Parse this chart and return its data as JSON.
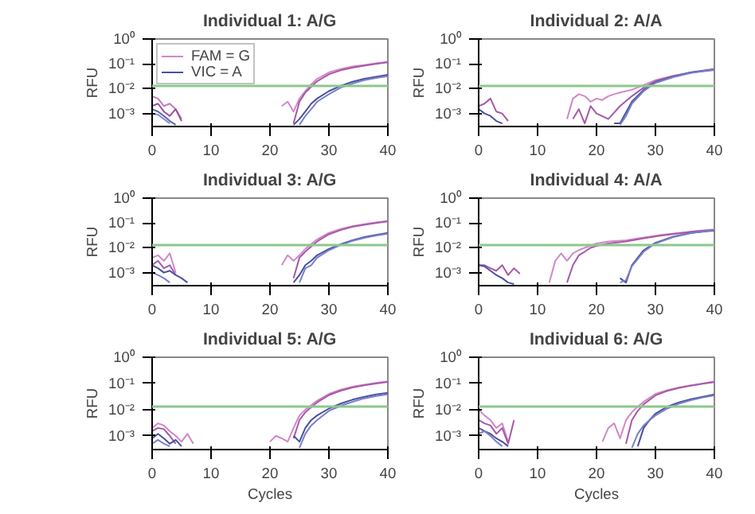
{
  "chart_data": [
    {
      "type": "line",
      "title": "Individual 1: A/G",
      "ylabel": "RFU",
      "log": "y",
      "grid": false,
      "legend": "top left",
      "xlim": [
        0,
        40
      ],
      "xticks": [
        0,
        10,
        20,
        30,
        40
      ],
      "ylim": [
        0.0003,
        1
      ],
      "yticks": [
        {
          "value": 1,
          "label": "10⁰"
        },
        {
          "value": 0.1,
          "label": "10⁻¹"
        },
        {
          "value": 0.01,
          "label": "10⁻²"
        },
        {
          "value": 0.001,
          "label": "10⁻³"
        }
      ],
      "ref_lines": [
        {
          "axis": "y",
          "value": 0.013,
          "color": "#8cc88c"
        }
      ],
      "series": [
        {
          "name": "FAM = G",
          "color": "#d088c8",
          "x": [
            22,
            23,
            24,
            25,
            26,
            27,
            28,
            30,
            32,
            34,
            36,
            38,
            40
          ],
          "values": [
            0.002,
            0.003,
            0.0012,
            0.004,
            0.008,
            0.015,
            0.025,
            0.045,
            0.062,
            0.078,
            0.09,
            0.105,
            0.12
          ]
        },
        {
          "name": "VIC = A",
          "color": "#4850a0",
          "x": [
            24,
            25,
            26,
            27,
            28,
            30,
            32,
            34,
            36,
            38,
            40
          ],
          "values": [
            0.00035,
            0.0006,
            0.0012,
            0.0025,
            0.004,
            0.008,
            0.013,
            0.019,
            0.025,
            0.03,
            0.036
          ]
        },
        {
          "color": "#a858a8",
          "x": [
            24,
            25,
            26,
            27,
            28,
            30,
            32,
            34,
            36,
            38,
            40
          ],
          "values": [
            0.0004,
            0.003,
            0.007,
            0.012,
            0.02,
            0.038,
            0.055,
            0.07,
            0.085,
            0.1,
            0.115
          ]
        },
        {
          "color": "#7880c8",
          "x": [
            25,
            26,
            27,
            28,
            30,
            32,
            34,
            36,
            38,
            40
          ],
          "values": [
            0.00035,
            0.0008,
            0.0015,
            0.003,
            0.006,
            0.011,
            0.016,
            0.022,
            0.027,
            0.032
          ]
        },
        {
          "color": "#c47cbc",
          "x": [
            0,
            1,
            2,
            3,
            4,
            5
          ],
          "values": [
            0.005,
            0.004,
            0.002,
            0.0025,
            0.0015,
            0.0006
          ]
        },
        {
          "color": "#9a4c9c",
          "x": [
            0,
            1,
            2,
            3,
            4,
            5
          ],
          "values": [
            0.002,
            0.0025,
            0.0012,
            0.0008,
            0.0015,
            0.0005
          ]
        },
        {
          "color": "#5c64b0",
          "x": [
            0,
            1,
            2,
            3,
            4
          ],
          "values": [
            0.0015,
            0.0012,
            0.0008,
            0.0005,
            0.00035
          ]
        },
        {
          "color": "#8890d0",
          "x": [
            0,
            1,
            2,
            3
          ],
          "values": [
            0.001,
            0.0009,
            0.0006,
            0.0004
          ]
        }
      ]
    },
    {
      "type": "line",
      "title": "Individual 2: A/A",
      "ylabel": "RFU",
      "log": "y",
      "grid": false,
      "xlim": [
        0,
        40
      ],
      "xticks": [
        0,
        10,
        20,
        30,
        40
      ],
      "ylim": [
        0.0003,
        1
      ],
      "yticks": [
        {
          "value": 1,
          "label": "10⁰"
        },
        {
          "value": 0.1,
          "label": "10⁻¹"
        },
        {
          "value": 0.01,
          "label": "10⁻²"
        },
        {
          "value": 0.001,
          "label": "10⁻³"
        }
      ],
      "ref_lines": [
        {
          "axis": "y",
          "value": 0.013,
          "color": "#8cc88c"
        }
      ],
      "series": [
        {
          "color": "#d088c8",
          "x": [
            15,
            16,
            17,
            18,
            19,
            20,
            21,
            22,
            23,
            24,
            26,
            28,
            30,
            33,
            36,
            40
          ],
          "values": [
            0.0006,
            0.004,
            0.006,
            0.005,
            0.003,
            0.004,
            0.0035,
            0.005,
            0.006,
            0.007,
            0.009,
            0.014,
            0.022,
            0.033,
            0.045,
            0.058
          ]
        },
        {
          "color": "#a858a8",
          "x": [
            16,
            17,
            18,
            19,
            20,
            22,
            24,
            26,
            28,
            30,
            33,
            36,
            40
          ],
          "values": [
            0.0006,
            0.0015,
            0.0004,
            0.002,
            0.001,
            0.0006,
            0.002,
            0.005,
            0.011,
            0.02,
            0.032,
            0.044,
            0.056
          ]
        },
        {
          "color": "#4850a0",
          "x": [
            23,
            24,
            26,
            28,
            30,
            33,
            36,
            40
          ],
          "values": [
            0.0004,
            0.0004,
            0.003,
            0.009,
            0.018,
            0.03,
            0.045,
            0.062
          ]
        },
        {
          "color": "#7880c8",
          "x": [
            24,
            25,
            26,
            28,
            30,
            33,
            36,
            40
          ],
          "values": [
            0.00035,
            0.0008,
            0.0025,
            0.008,
            0.017,
            0.029,
            0.043,
            0.06
          ]
        },
        {
          "color": "#a858a8",
          "x": [
            0,
            1,
            2,
            3,
            4,
            5
          ],
          "values": [
            0.002,
            0.0025,
            0.004,
            0.0012,
            0.001,
            0.0005
          ]
        },
        {
          "color": "#4850a0",
          "x": [
            0,
            1,
            2,
            3,
            4
          ],
          "values": [
            0.0015,
            0.001,
            0.0008,
            0.0005,
            0.0004
          ]
        }
      ]
    },
    {
      "type": "line",
      "title": "Individual 3: A/G",
      "ylabel": "RFU",
      "log": "y",
      "grid": false,
      "xlim": [
        0,
        40
      ],
      "xticks": [
        0,
        10,
        20,
        30,
        40
      ],
      "ylim": [
        0.0003,
        1
      ],
      "yticks": [
        {
          "value": 1,
          "label": "10⁰"
        },
        {
          "value": 0.1,
          "label": "10⁻¹"
        },
        {
          "value": 0.01,
          "label": "10⁻²"
        },
        {
          "value": 0.001,
          "label": "10⁻³"
        }
      ],
      "ref_lines": [
        {
          "axis": "y",
          "value": 0.013,
          "color": "#8cc88c"
        }
      ],
      "series": [
        {
          "color": "#d088c8",
          "x": [
            22,
            23,
            24,
            25,
            26,
            28,
            30,
            32,
            34,
            36,
            38,
            40
          ],
          "values": [
            0.002,
            0.005,
            0.003,
            0.005,
            0.009,
            0.022,
            0.04,
            0.058,
            0.075,
            0.09,
            0.105,
            0.12
          ]
        },
        {
          "color": "#a858a8",
          "x": [
            24,
            25,
            26,
            28,
            30,
            32,
            34,
            36,
            38,
            40
          ],
          "values": [
            0.0006,
            0.004,
            0.007,
            0.018,
            0.035,
            0.052,
            0.07,
            0.085,
            0.1,
            0.115
          ]
        },
        {
          "color": "#4850a0",
          "x": [
            24,
            25,
            26,
            27,
            28,
            30,
            32,
            34,
            36,
            38,
            40
          ],
          "values": [
            0.0004,
            0.0008,
            0.002,
            0.003,
            0.005,
            0.009,
            0.014,
            0.02,
            0.027,
            0.033,
            0.04
          ]
        },
        {
          "color": "#7880c8",
          "x": [
            25,
            26,
            27,
            28,
            30,
            32,
            34,
            36,
            38,
            40
          ],
          "values": [
            0.0004,
            0.0015,
            0.002,
            0.004,
            0.008,
            0.013,
            0.019,
            0.025,
            0.031,
            0.037
          ]
        },
        {
          "color": "#d088c8",
          "x": [
            0,
            1,
            2,
            3,
            4
          ],
          "values": [
            0.004,
            0.005,
            0.003,
            0.006,
            0.001
          ]
        },
        {
          "color": "#a858a8",
          "x": [
            0,
            1,
            2,
            3,
            4
          ],
          "values": [
            0.002,
            0.003,
            0.0015,
            0.002,
            0.0008
          ]
        },
        {
          "color": "#4850a0",
          "x": [
            0,
            1,
            2,
            3,
            4,
            5,
            6
          ],
          "values": [
            0.002,
            0.0015,
            0.001,
            0.0012,
            0.0008,
            0.0006,
            0.0004
          ]
        },
        {
          "color": "#7880c8",
          "x": [
            0,
            1,
            2,
            3
          ],
          "values": [
            0.001,
            0.0008,
            0.0006,
            0.0004
          ]
        }
      ]
    },
    {
      "type": "line",
      "title": "Individual 4: A/A",
      "ylabel": "RFU",
      "log": "y",
      "grid": false,
      "xlim": [
        0,
        40
      ],
      "xticks": [
        0,
        10,
        20,
        30,
        40
      ],
      "ylim": [
        0.0003,
        1
      ],
      "yticks": [
        {
          "value": 1,
          "label": "10⁰"
        },
        {
          "value": 0.1,
          "label": "10⁻¹"
        },
        {
          "value": 0.01,
          "label": "10⁻²"
        },
        {
          "value": 0.001,
          "label": "10⁻³"
        }
      ],
      "ref_lines": [
        {
          "axis": "y",
          "value": 0.013,
          "color": "#8cc88c"
        }
      ],
      "series": [
        {
          "color": "#d088c8",
          "x": [
            12,
            13,
            14,
            15,
            16,
            17,
            18,
            20,
            22,
            25,
            28,
            31,
            34,
            37,
            40
          ],
          "values": [
            0.0004,
            0.003,
            0.006,
            0.003,
            0.006,
            0.008,
            0.01,
            0.015,
            0.018,
            0.02,
            0.026,
            0.033,
            0.04,
            0.048,
            0.055
          ]
        },
        {
          "color": "#a858a8",
          "x": [
            15,
            16,
            17,
            18,
            19,
            20,
            22,
            25,
            28,
            31,
            34,
            37,
            40
          ],
          "values": [
            0.0004,
            0.002,
            0.005,
            0.007,
            0.01,
            0.012,
            0.015,
            0.018,
            0.024,
            0.031,
            0.038,
            0.046,
            0.052
          ]
        },
        {
          "color": "#4850a0",
          "x": [
            24,
            25,
            26,
            28,
            30,
            33,
            36,
            40
          ],
          "values": [
            0.0006,
            0.0004,
            0.002,
            0.008,
            0.016,
            0.028,
            0.04,
            0.05
          ]
        },
        {
          "color": "#7880c8",
          "x": [
            24,
            25,
            26,
            28,
            30,
            33,
            36,
            40
          ],
          "values": [
            0.0004,
            0.0005,
            0.0018,
            0.007,
            0.015,
            0.027,
            0.039,
            0.052
          ]
        },
        {
          "color": "#a858a8",
          "x": [
            0,
            1,
            2,
            3,
            4,
            5,
            6,
            7
          ],
          "values": [
            0.002,
            0.002,
            0.0015,
            0.0012,
            0.002,
            0.0008,
            0.0015,
            0.0009
          ]
        },
        {
          "color": "#4850a0",
          "x": [
            0,
            1,
            2,
            3,
            4,
            5,
            6
          ],
          "values": [
            0.002,
            0.0018,
            0.0012,
            0.0008,
            0.0006,
            0.0004,
            0.00035
          ]
        }
      ]
    },
    {
      "type": "line",
      "title": "Individual 5: A/G",
      "xlabel": "Cycles",
      "ylabel": "RFU",
      "log": "y",
      "grid": false,
      "xlim": [
        0,
        40
      ],
      "xticks": [
        0,
        10,
        20,
        30,
        40
      ],
      "ylim": [
        0.0003,
        1
      ],
      "yticks": [
        {
          "value": 1,
          "label": "10⁰"
        },
        {
          "value": 0.1,
          "label": "10⁻¹"
        },
        {
          "value": 0.01,
          "label": "10⁻²"
        },
        {
          "value": 0.001,
          "label": "10⁻³"
        }
      ],
      "ref_lines": [
        {
          "axis": "y",
          "value": 0.013,
          "color": "#8cc88c"
        }
      ],
      "series": [
        {
          "color": "#d088c8",
          "x": [
            20,
            21,
            22,
            23,
            24,
            25,
            26,
            28,
            30,
            32,
            34,
            36,
            38,
            40
          ],
          "values": [
            0.0006,
            0.001,
            0.0008,
            0.0006,
            0.002,
            0.006,
            0.01,
            0.022,
            0.04,
            0.058,
            0.075,
            0.09,
            0.105,
            0.12
          ]
        },
        {
          "color": "#a858a8",
          "x": [
            24,
            25,
            26,
            28,
            30,
            32,
            34,
            36,
            38,
            40
          ],
          "values": [
            0.0008,
            0.004,
            0.008,
            0.019,
            0.036,
            0.053,
            0.07,
            0.085,
            0.1,
            0.115
          ]
        },
        {
          "color": "#4850a0",
          "x": [
            24,
            25,
            26,
            27,
            28,
            30,
            32,
            34,
            36,
            38,
            40
          ],
          "values": [
            0.001,
            0.0006,
            0.002,
            0.004,
            0.006,
            0.011,
            0.017,
            0.024,
            0.031,
            0.038,
            0.044
          ]
        },
        {
          "color": "#7880c8",
          "x": [
            25,
            26,
            27,
            28,
            30,
            32,
            34,
            36,
            38,
            40
          ],
          "values": [
            0.00035,
            0.0012,
            0.0025,
            0.004,
            0.009,
            0.014,
            0.02,
            0.027,
            0.033,
            0.039
          ]
        },
        {
          "color": "#d088c8",
          "x": [
            0,
            1,
            2,
            3,
            4,
            5,
            6,
            7
          ],
          "values": [
            0.002,
            0.003,
            0.0025,
            0.0015,
            0.001,
            0.0006,
            0.0012,
            0.0005
          ]
        },
        {
          "color": "#a858a8",
          "x": [
            0,
            1,
            2,
            3,
            4
          ],
          "values": [
            0.0015,
            0.002,
            0.0018,
            0.001,
            0.0005
          ]
        },
        {
          "color": "#4850a0",
          "x": [
            0,
            1,
            2,
            3,
            4,
            5
          ],
          "values": [
            0.0008,
            0.0012,
            0.0008,
            0.0005,
            0.0007,
            0.0004
          ]
        },
        {
          "color": "#7880c8",
          "x": [
            0,
            1,
            2,
            3
          ],
          "values": [
            0.0005,
            0.0007,
            0.0005,
            0.0004
          ]
        }
      ]
    },
    {
      "type": "line",
      "title": "Individual 6: A/G",
      "xlabel": "Cycles",
      "ylabel": "RFU",
      "log": "y",
      "grid": false,
      "xlim": [
        0,
        40
      ],
      "xticks": [
        0,
        10,
        20,
        30,
        40
      ],
      "ylim": [
        0.0003,
        1
      ],
      "yticks": [
        {
          "value": 1,
          "label": "10⁰"
        },
        {
          "value": 0.1,
          "label": "10⁻¹"
        },
        {
          "value": 0.01,
          "label": "10⁻²"
        },
        {
          "value": 0.001,
          "label": "10⁻³"
        }
      ],
      "ref_lines": [
        {
          "axis": "y",
          "value": 0.013,
          "color": "#8cc88c"
        }
      ],
      "series": [
        {
          "color": "#d088c8",
          "x": [
            21,
            22,
            23,
            24,
            25,
            26,
            27,
            28,
            30,
            32,
            34,
            36,
            38,
            40
          ],
          "values": [
            0.0006,
            0.002,
            0.003,
            0.0008,
            0.004,
            0.008,
            0.013,
            0.02,
            0.04,
            0.055,
            0.07,
            0.085,
            0.1,
            0.12
          ]
        },
        {
          "color": "#a858a8",
          "x": [
            25,
            26,
            27,
            28,
            30,
            32,
            34,
            36,
            38,
            40
          ],
          "values": [
            0.0005,
            0.004,
            0.009,
            0.016,
            0.035,
            0.052,
            0.068,
            0.082,
            0.097,
            0.112
          ]
        },
        {
          "color": "#4850a0",
          "x": [
            27,
            28,
            29,
            30,
            32,
            34,
            36,
            38,
            40
          ],
          "values": [
            0.0004,
            0.002,
            0.004,
            0.007,
            0.013,
            0.019,
            0.025,
            0.031,
            0.038
          ]
        },
        {
          "color": "#7880c8",
          "x": [
            26,
            27,
            28,
            29,
            30,
            32,
            34,
            36,
            38,
            40
          ],
          "values": [
            0.00035,
            0.0012,
            0.0025,
            0.004,
            0.006,
            0.011,
            0.017,
            0.023,
            0.029,
            0.035
          ]
        },
        {
          "color": "#d088c8",
          "x": [
            0,
            1,
            2,
            3,
            4,
            5
          ],
          "values": [
            0.01,
            0.006,
            0.004,
            0.002,
            0.003,
            0.0006
          ]
        },
        {
          "color": "#a858a8",
          "x": [
            0,
            1,
            2,
            3,
            4,
            5,
            6
          ],
          "values": [
            0.004,
            0.003,
            0.0025,
            0.0012,
            0.002,
            0.0005,
            0.004
          ]
        },
        {
          "color": "#4850a0",
          "x": [
            0,
            1,
            2,
            3,
            4,
            5
          ],
          "values": [
            0.002,
            0.0015,
            0.0012,
            0.0008,
            0.0006,
            0.0004
          ]
        },
        {
          "color": "#7880c8",
          "x": [
            0,
            1,
            2,
            3,
            4
          ],
          "values": [
            0.0012,
            0.0015,
            0.001,
            0.0006,
            0.0004
          ]
        }
      ]
    }
  ]
}
